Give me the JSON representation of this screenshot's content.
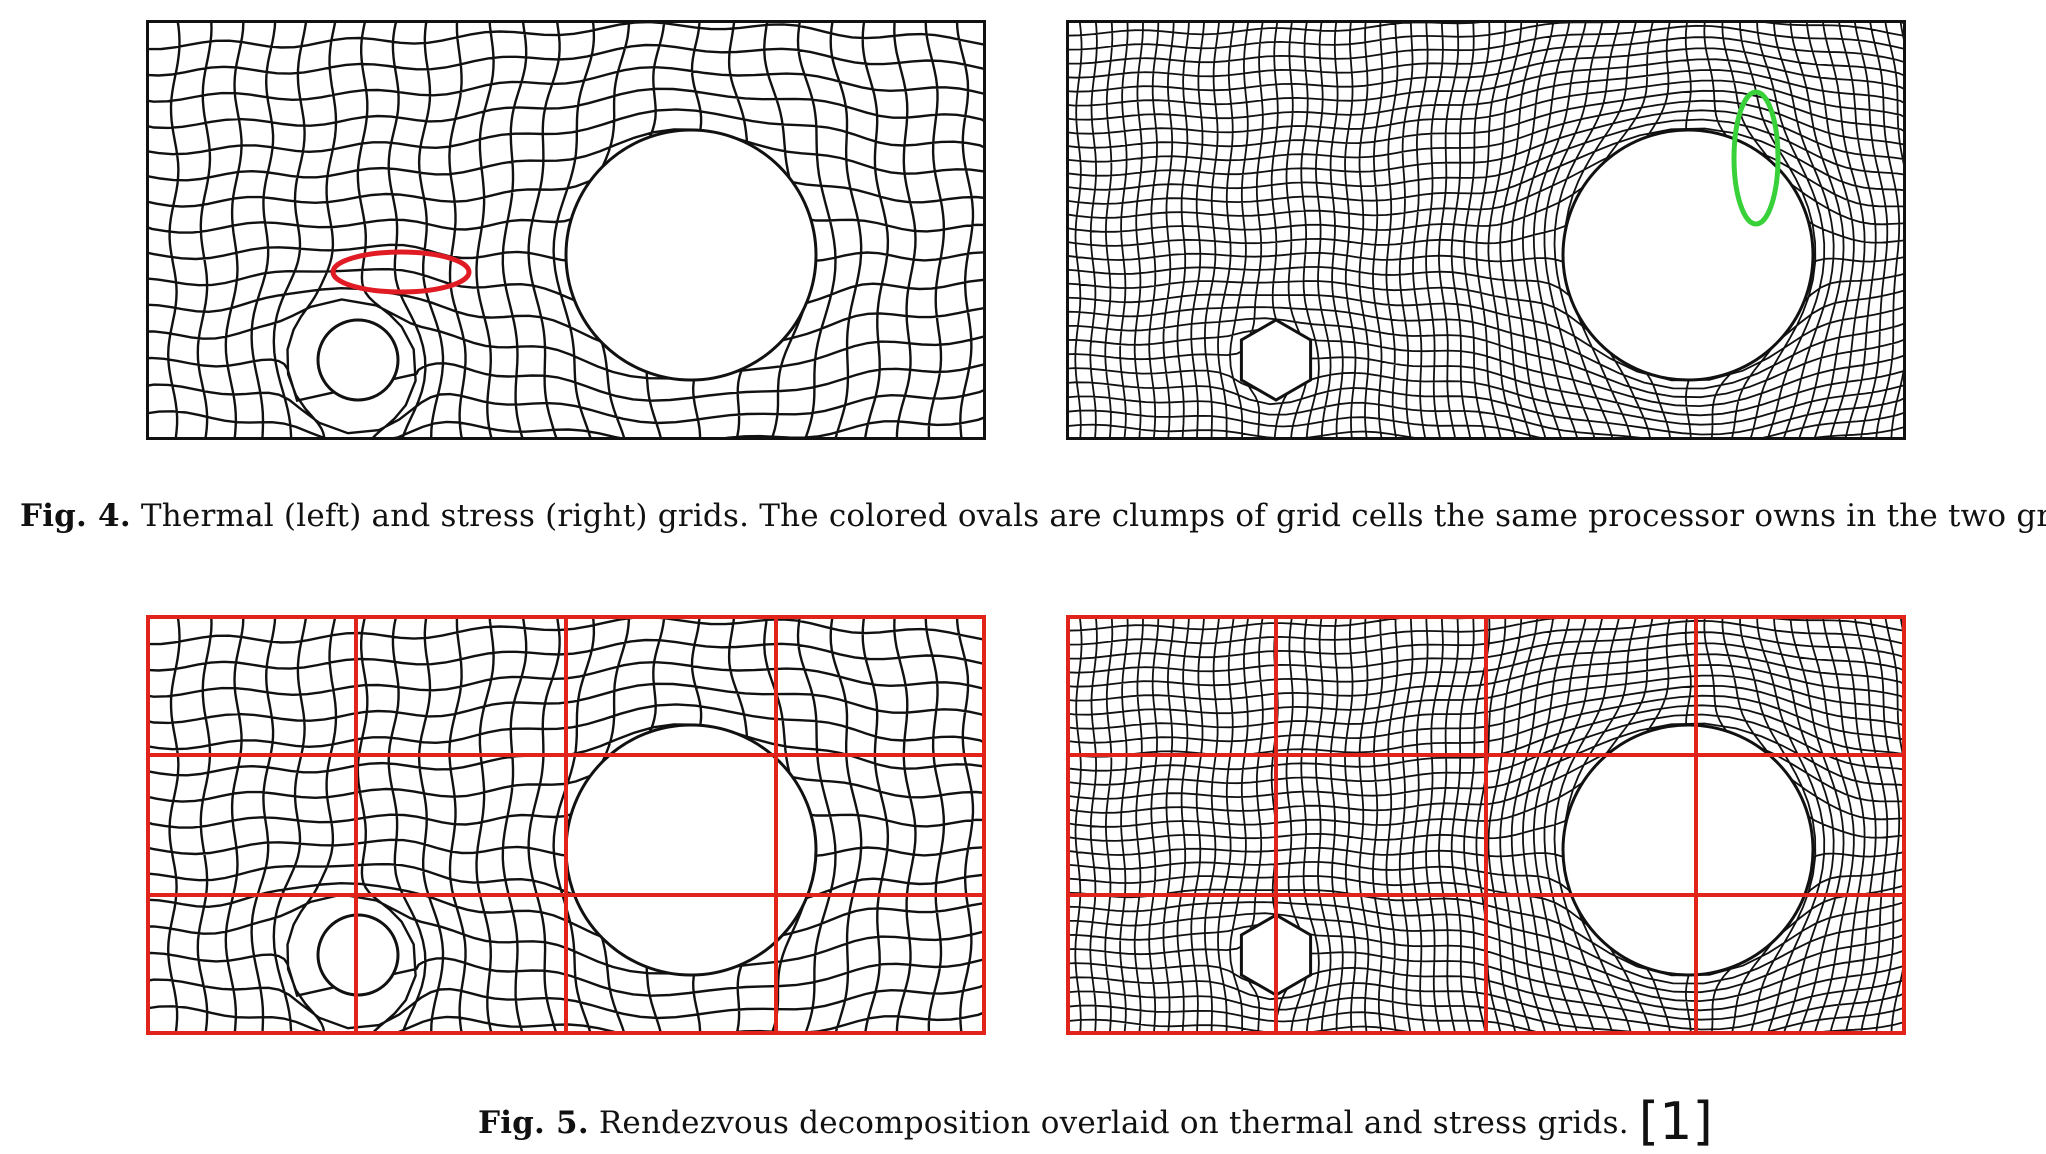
{
  "figures": [
    {
      "label": "Fig. 4.",
      "caption": "Thermal (left) and stress (right) grids. The colored ovals are clumps of grid cells the same processor owns in the two grids.",
      "panels": {
        "left": {
          "mesh": "thermal",
          "highlight_color": "#e01b24"
        },
        "right": {
          "mesh": "stress",
          "highlight_color": "#39d13a"
        }
      }
    },
    {
      "label": "Fig. 5.",
      "caption": "Rendezvous decomposition overlaid on thermal and stress grids.",
      "reference": "[1]",
      "overlay": {
        "color": "#e2231a",
        "columns": 4,
        "rows": 3
      }
    }
  ]
}
